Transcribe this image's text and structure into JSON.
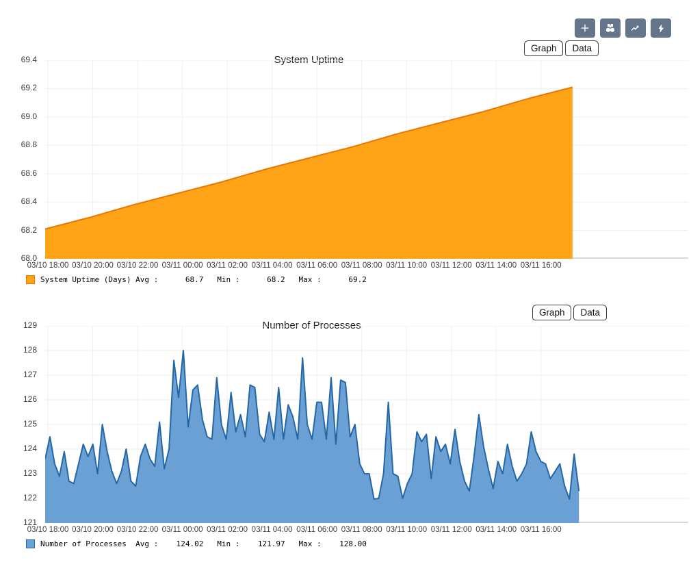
{
  "toolbar": {
    "accent_color": "#64748b",
    "buttons": [
      {
        "name": "add",
        "icon": "plus-icon"
      },
      {
        "name": "inspect",
        "icon": "binoculars-icon"
      },
      {
        "name": "graph",
        "icon": "line-chart-icon"
      },
      {
        "name": "actions",
        "icon": "lightning-icon"
      }
    ]
  },
  "tabs": {
    "graph_label": "Graph",
    "data_label": "Data"
  },
  "chart_data": [
    {
      "type": "area",
      "title": "System Uptime",
      "series_name": "System Uptime (Days)",
      "stats": {
        "avg": "68.7",
        "min": "68.2",
        "max": "69.2"
      },
      "legend_text": "System Uptime (Days) Avg :      68.7   Min :      68.2   Max :      69.2",
      "x_ticks": [
        "03/10 18:00",
        "03/10 20:00",
        "03/10 22:00",
        "03/11 00:00",
        "03/11 02:00",
        "03/11 04:00",
        "03/11 06:00",
        "03/11 08:00",
        "03/11 10:00",
        "03/11 12:00",
        "03/11 14:00",
        "03/11 16:00"
      ],
      "y_ticks": [
        "68.0",
        "68.2",
        "68.4",
        "68.6",
        "68.8",
        "69.0",
        "69.2",
        "69.4"
      ],
      "ylim": [
        68.0,
        69.4
      ],
      "grid": true,
      "legend_position": "bottom-left",
      "plot_end_frac": 0.82,
      "line_color": "#ee7400",
      "fill_color": "#ffa416",
      "values": [
        68.21,
        68.29,
        68.38,
        68.46,
        68.54,
        68.63,
        68.71,
        68.79,
        68.88,
        68.96,
        69.04,
        69.13,
        69.21
      ]
    },
    {
      "type": "area",
      "title": "Number of Processes",
      "series_name": "Number of Processes",
      "stats": {
        "avg": "124.02",
        "min": "121.97",
        "max": "128.00"
      },
      "legend_text": "Number of Processes  Avg :    124.02   Min :    121.97   Max :    128.00",
      "x_ticks": [
        "03/10 18:00",
        "03/10 20:00",
        "03/10 22:00",
        "03/11 00:00",
        "03/11 02:00",
        "03/11 04:00",
        "03/11 06:00",
        "03/11 08:00",
        "03/11 10:00",
        "03/11 12:00",
        "03/11 14:00",
        "03/11 16:00"
      ],
      "y_ticks": [
        "121",
        "122",
        "123",
        "124",
        "125",
        "126",
        "127",
        "128",
        "129"
      ],
      "ylim": [
        121,
        129
      ],
      "grid": true,
      "legend_position": "bottom-left",
      "plot_end_frac": 0.83,
      "line_color": "#2567a6",
      "fill_color": "#6aa0d4",
      "values": [
        123.6,
        124.5,
        123.4,
        122.9,
        123.9,
        122.7,
        122.6,
        123.4,
        124.2,
        123.7,
        124.2,
        123.0,
        125.0,
        123.9,
        123.1,
        122.6,
        123.1,
        124.0,
        122.7,
        122.5,
        123.7,
        124.2,
        123.6,
        123.3,
        125.1,
        123.2,
        124.0,
        127.6,
        126.1,
        128.0,
        124.9,
        126.4,
        126.6,
        125.2,
        124.5,
        124.4,
        126.9,
        125.0,
        124.4,
        126.3,
        124.7,
        125.4,
        124.5,
        126.6,
        126.5,
        124.6,
        124.3,
        125.5,
        124.4,
        126.5,
        124.4,
        125.8,
        125.3,
        124.4,
        127.7,
        125.0,
        124.4,
        125.9,
        125.9,
        124.4,
        126.9,
        124.2,
        126.8,
        126.7,
        124.5,
        125.0,
        123.4,
        123.0,
        123.0,
        121.97,
        122.0,
        123.0,
        125.9,
        123.0,
        122.9,
        122.0,
        122.6,
        123.0,
        124.7,
        124.3,
        124.6,
        122.8,
        124.5,
        123.9,
        124.2,
        123.4,
        124.8,
        123.5,
        122.7,
        122.3,
        123.7,
        125.4,
        124.1,
        123.2,
        122.4,
        123.5,
        123.0,
        124.2,
        123.3,
        122.7,
        123.0,
        123.4,
        124.7,
        123.9,
        123.5,
        123.4,
        122.8,
        123.1,
        123.4,
        122.5,
        121.97,
        123.8,
        122.3
      ]
    }
  ]
}
